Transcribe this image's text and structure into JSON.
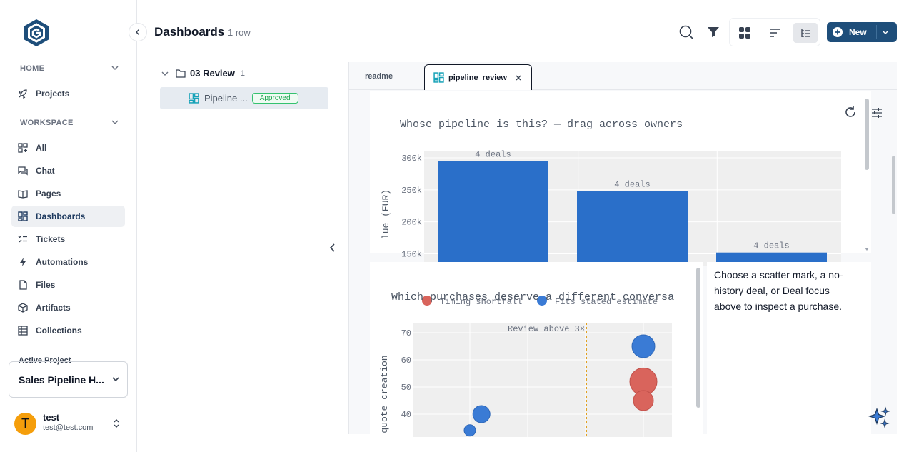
{
  "sidebar": {
    "home_label": "HOME",
    "workspace_label": "WORKSPACE",
    "home_items": [
      {
        "label": "Projects",
        "icon": "rocket-icon"
      }
    ],
    "items": [
      {
        "label": "All",
        "icon": "all-icon"
      },
      {
        "label": "Chat",
        "icon": "chat-icon"
      },
      {
        "label": "Pages",
        "icon": "pages-icon"
      },
      {
        "label": "Dashboards",
        "icon": "dashboard-icon",
        "active": true
      },
      {
        "label": "Tickets",
        "icon": "tickets-icon"
      },
      {
        "label": "Automations",
        "icon": "bolt-icon"
      },
      {
        "label": "Files",
        "icon": "file-icon"
      },
      {
        "label": "Artifacts",
        "icon": "cube-icon"
      },
      {
        "label": "Collections",
        "icon": "table-icon"
      }
    ],
    "active_project_label": "Active Project",
    "active_project_value": "Sales Pipeline H...",
    "user": {
      "initial": "T",
      "name": "test",
      "email": "test@test.com"
    }
  },
  "header": {
    "title": "Dashboards",
    "row_count": "1 row",
    "new_label": "New"
  },
  "tree": {
    "folder_label": "03 Review",
    "folder_count": "1",
    "item_label": "Pipeline ...",
    "item_badge": "Approved"
  },
  "tabs": [
    {
      "label": "readme",
      "active": false
    },
    {
      "label": "pipeline_review",
      "active": true
    }
  ],
  "info_text": "Choose a scatter mark, a no-history deal, or Deal focus above to inspect a purchase.",
  "colors": {
    "accent": "#1e4e7a",
    "bar": "#2a6fc9",
    "timing": "#d9645c",
    "fits": "#3a7bd5",
    "badge": "#16a34a"
  },
  "chart_data": [
    {
      "type": "bar",
      "title": "Whose pipeline is this? — drag across owners",
      "ylabel": "lue (EUR)",
      "ylim": [
        150000,
        310000
      ],
      "yticks": [
        "300k",
        "250k",
        "200k",
        "150k"
      ],
      "values": [
        295000,
        248000,
        152000
      ],
      "data_labels": [
        "4 deals",
        "4 deals",
        "4 deals"
      ]
    },
    {
      "type": "scatter",
      "title": "Which purchases deserve a different conversa",
      "ylabel": "quote creation",
      "yticks": [
        "70",
        "60",
        "50",
        "40"
      ],
      "annotation": "Review above 3×",
      "series": [
        {
          "name": "Timing shortfall",
          "points": [
            {
              "x": 4,
              "y": 52,
              "r": 19
            },
            {
              "x": 4,
              "y": 45,
              "r": 14
            }
          ]
        },
        {
          "name": "Fits stated estimate",
          "points": [
            {
              "x": 4,
              "y": 65,
              "r": 16
            },
            {
              "x": 1.2,
              "y": 40,
              "r": 12
            },
            {
              "x": 1,
              "y": 34,
              "r": 8
            }
          ]
        }
      ]
    }
  ]
}
